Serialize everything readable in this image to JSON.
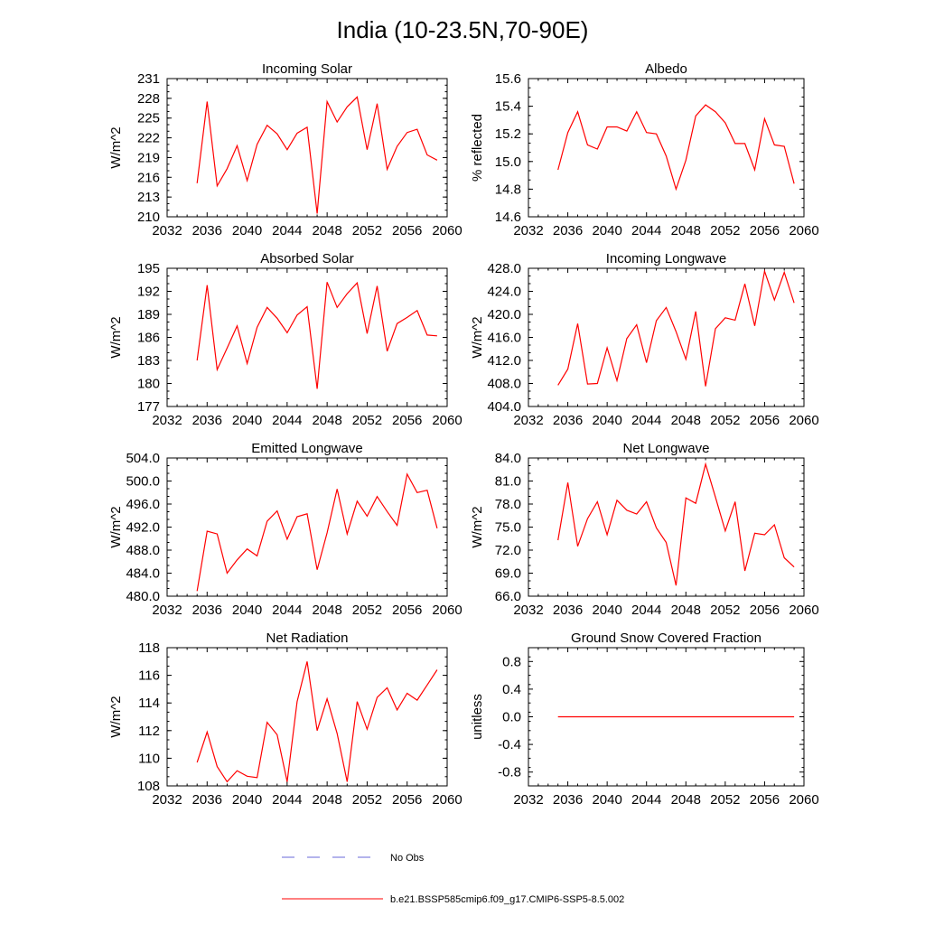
{
  "figure": {
    "title": "India (10-23.5N,70-90E)",
    "series_color": "#ff0000",
    "obs_color": "#6a6ad8"
  },
  "legend": {
    "obs_label": "No Obs",
    "model_label": "b.e21.BSSP585cmip6.f09_g17.CMIP6-SSP5-8.5.002"
  },
  "chart_data": [
    {
      "type": "line",
      "title": "Incoming Solar",
      "ylabel": "W/m^2",
      "xlim": [
        2032,
        2060
      ],
      "xticks": [
        "2032",
        "2036",
        "2040",
        "2044",
        "2048",
        "2052",
        "2056",
        "2060"
      ],
      "ylim": [
        210,
        231
      ],
      "yticks": [
        "210",
        "213",
        "216",
        "219",
        "222",
        "225",
        "228",
        "231"
      ],
      "grid": false,
      "x": [
        2035,
        2036,
        2037,
        2038,
        2039,
        2040,
        2041,
        2042,
        2043,
        2044,
        2045,
        2046,
        2047,
        2048,
        2049,
        2050,
        2051,
        2052,
        2053,
        2054,
        2055,
        2056,
        2057,
        2058,
        2059
      ],
      "series": [
        {
          "values": [
            215.1,
            227.5,
            214.7,
            217.3,
            220.8,
            215.5,
            221.0,
            223.9,
            222.6,
            220.2,
            222.7,
            223.6,
            210.5,
            227.5,
            224.4,
            226.7,
            228.2,
            220.2,
            227.2,
            217.2,
            220.7,
            222.8,
            223.3,
            219.4,
            218.6
          ]
        }
      ]
    },
    {
      "type": "line",
      "title": "Albedo",
      "ylabel": "% reflected",
      "xlim": [
        2032,
        2060
      ],
      "xticks": [
        "2032",
        "2036",
        "2040",
        "2044",
        "2048",
        "2052",
        "2056",
        "2060"
      ],
      "ylim": [
        14.6,
        15.6
      ],
      "yticks": [
        "14.6",
        "14.8",
        "15.0",
        "15.2",
        "15.4",
        "15.6"
      ],
      "grid": false,
      "x": [
        2035,
        2036,
        2037,
        2038,
        2039,
        2040,
        2041,
        2042,
        2043,
        2044,
        2045,
        2046,
        2047,
        2048,
        2049,
        2050,
        2051,
        2052,
        2053,
        2054,
        2055,
        2056,
        2057,
        2058,
        2059
      ],
      "series": [
        {
          "values": [
            14.94,
            15.21,
            15.36,
            15.12,
            15.09,
            15.25,
            15.25,
            15.22,
            15.36,
            15.21,
            15.2,
            15.04,
            14.8,
            15.01,
            15.33,
            15.41,
            15.36,
            15.28,
            15.13,
            15.13,
            14.94,
            15.31,
            15.12,
            15.11,
            14.84
          ]
        }
      ]
    },
    {
      "type": "line",
      "title": "Absorbed Solar",
      "ylabel": "W/m^2",
      "xlim": [
        2032,
        2060
      ],
      "xticks": [
        "2032",
        "2036",
        "2040",
        "2044",
        "2048",
        "2052",
        "2056",
        "2060"
      ],
      "ylim": [
        177,
        195
      ],
      "yticks": [
        "177",
        "180",
        "183",
        "186",
        "189",
        "192",
        "195"
      ],
      "grid": false,
      "x": [
        2035,
        2036,
        2037,
        2038,
        2039,
        2040,
        2041,
        2042,
        2043,
        2044,
        2045,
        2046,
        2047,
        2048,
        2049,
        2050,
        2051,
        2052,
        2053,
        2054,
        2055,
        2056,
        2057,
        2058,
        2059
      ],
      "series": [
        {
          "values": [
            183.0,
            192.8,
            181.8,
            184.6,
            187.5,
            182.6,
            187.3,
            189.9,
            188.5,
            186.6,
            188.9,
            190.0,
            179.3,
            193.2,
            189.9,
            191.7,
            193.1,
            186.5,
            192.7,
            184.2,
            187.8,
            188.6,
            189.5,
            186.3,
            186.2
          ]
        }
      ]
    },
    {
      "type": "line",
      "title": "Incoming Longwave",
      "ylabel": "W/m^2",
      "xlim": [
        2032,
        2060
      ],
      "xticks": [
        "2032",
        "2036",
        "2040",
        "2044",
        "2048",
        "2052",
        "2056",
        "2060"
      ],
      "ylim": [
        404.0,
        428.0
      ],
      "yticks": [
        "404.0",
        "408.0",
        "412.0",
        "416.0",
        "420.0",
        "424.0",
        "428.0"
      ],
      "grid": false,
      "x": [
        2035,
        2036,
        2037,
        2038,
        2039,
        2040,
        2041,
        2042,
        2043,
        2044,
        2045,
        2046,
        2047,
        2048,
        2049,
        2050,
        2051,
        2052,
        2053,
        2054,
        2055,
        2056,
        2057,
        2058,
        2059
      ],
      "series": [
        {
          "values": [
            407.7,
            410.5,
            418.4,
            407.9,
            408.0,
            414.2,
            408.5,
            415.8,
            418.2,
            411.6,
            418.9,
            421.2,
            417.0,
            412.2,
            420.5,
            407.5,
            417.5,
            419.4,
            419.0,
            425.3,
            418.0,
            427.5,
            422.5,
            427.3,
            422.0
          ]
        }
      ]
    },
    {
      "type": "line",
      "title": "Emitted Longwave",
      "ylabel": "W/m^2",
      "xlim": [
        2032,
        2060
      ],
      "xticks": [
        "2032",
        "2036",
        "2040",
        "2044",
        "2048",
        "2052",
        "2056",
        "2060"
      ],
      "ylim": [
        480.0,
        504.0
      ],
      "yticks": [
        "480.0",
        "484.0",
        "488.0",
        "492.0",
        "496.0",
        "500.0",
        "504.0"
      ],
      "grid": false,
      "x": [
        2035,
        2036,
        2037,
        2038,
        2039,
        2040,
        2041,
        2042,
        2043,
        2044,
        2045,
        2046,
        2047,
        2048,
        2049,
        2050,
        2051,
        2052,
        2053,
        2054,
        2055,
        2056,
        2057,
        2058,
        2059
      ],
      "series": [
        {
          "values": [
            480.9,
            491.3,
            490.8,
            484.0,
            486.3,
            488.2,
            487.0,
            493.0,
            494.8,
            489.9,
            493.8,
            494.3,
            484.6,
            491.0,
            498.6,
            490.8,
            496.5,
            493.9,
            497.3,
            494.7,
            492.3,
            501.2,
            498.0,
            498.4,
            491.8
          ]
        }
      ]
    },
    {
      "type": "line",
      "title": "Net Longwave",
      "ylabel": "W/m^2",
      "xlim": [
        2032,
        2060
      ],
      "xticks": [
        "2032",
        "2036",
        "2040",
        "2044",
        "2048",
        "2052",
        "2056",
        "2060"
      ],
      "ylim": [
        66.0,
        84.0
      ],
      "yticks": [
        "66.0",
        "69.0",
        "72.0",
        "75.0",
        "78.0",
        "81.0",
        "84.0"
      ],
      "grid": false,
      "x": [
        2035,
        2036,
        2037,
        2038,
        2039,
        2040,
        2041,
        2042,
        2043,
        2044,
        2045,
        2046,
        2047,
        2048,
        2049,
        2050,
        2051,
        2052,
        2053,
        2054,
        2055,
        2056,
        2057,
        2058,
        2059
      ],
      "series": [
        {
          "values": [
            73.3,
            80.8,
            72.5,
            76.1,
            78.3,
            74.0,
            78.5,
            77.2,
            76.7,
            78.3,
            74.9,
            73.0,
            67.4,
            78.8,
            78.1,
            83.2,
            78.9,
            74.5,
            78.3,
            69.3,
            74.2,
            74.0,
            75.3,
            71.0,
            69.8
          ]
        }
      ]
    },
    {
      "type": "line",
      "title": "Net Radiation",
      "ylabel": "W/m^2",
      "xlim": [
        2032,
        2060
      ],
      "xticks": [
        "2032",
        "2036",
        "2040",
        "2044",
        "2048",
        "2052",
        "2056",
        "2060"
      ],
      "ylim": [
        108,
        118
      ],
      "yticks": [
        "108",
        "110",
        "112",
        "114",
        "116",
        "118"
      ],
      "grid": false,
      "x": [
        2035,
        2036,
        2037,
        2038,
        2039,
        2040,
        2041,
        2042,
        2043,
        2044,
        2045,
        2046,
        2047,
        2048,
        2049,
        2050,
        2051,
        2052,
        2053,
        2054,
        2055,
        2056,
        2057,
        2058,
        2059
      ],
      "series": [
        {
          "values": [
            109.7,
            111.9,
            109.4,
            108.3,
            109.1,
            108.7,
            108.6,
            112.6,
            111.7,
            108.3,
            114.1,
            117.0,
            112.0,
            114.3,
            111.8,
            108.3,
            114.1,
            112.1,
            114.4,
            115.1,
            113.5,
            114.7,
            114.2,
            115.3,
            116.4
          ]
        }
      ]
    },
    {
      "type": "line",
      "title": "Ground Snow Covered Fraction",
      "ylabel": "unitless",
      "xlim": [
        2032,
        2060
      ],
      "xticks": [
        "2032",
        "2036",
        "2040",
        "2044",
        "2048",
        "2052",
        "2056",
        "2060"
      ],
      "ylim": [
        -1.0,
        1.0
      ],
      "yticks": [
        "-0.8",
        "-0.4",
        "0.0",
        "0.4",
        "0.8"
      ],
      "grid": false,
      "x": [
        2035,
        2059
      ],
      "series": [
        {
          "values": [
            0.0,
            0.0
          ]
        }
      ]
    }
  ]
}
